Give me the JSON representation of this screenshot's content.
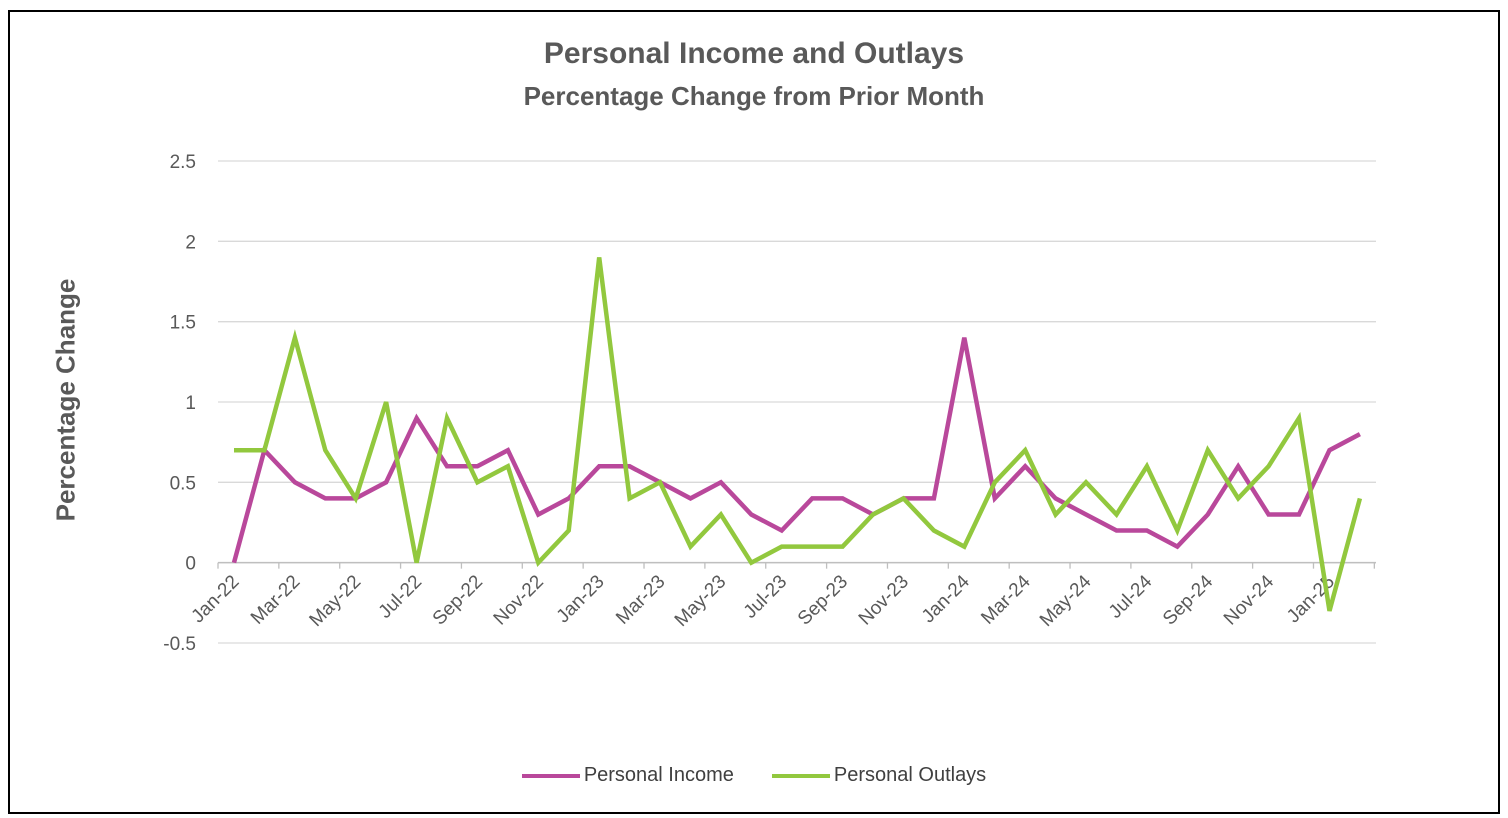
{
  "chart_data": {
    "type": "line",
    "title": "Personal Income and Outlays",
    "subtitle": "Percentage Change from Prior Month",
    "ylabel": "Percentage Change",
    "ylim": [
      -0.5,
      2.5
    ],
    "yticks": [
      "-0.5",
      "0",
      "0.5",
      "1",
      "1.5",
      "2",
      "2.5"
    ],
    "yticks_values": [
      -0.5,
      0,
      0.5,
      1,
      1.5,
      2,
      2.5
    ],
    "grid": true,
    "legend_position": "bottom",
    "categories": [
      "Jan-22",
      "Feb-22",
      "Mar-22",
      "Apr-22",
      "May-22",
      "Jun-22",
      "Jul-22",
      "Aug-22",
      "Sep-22",
      "Oct-22",
      "Nov-22",
      "Dec-22",
      "Jan-23",
      "Feb-23",
      "Mar-23",
      "Apr-23",
      "May-23",
      "Jun-23",
      "Jul-23",
      "Aug-23",
      "Sep-23",
      "Oct-23",
      "Nov-23",
      "Dec-23",
      "Jan-24",
      "Feb-24",
      "Mar-24",
      "Apr-24",
      "May-24",
      "Jun-24",
      "Jul-24",
      "Aug-24",
      "Sep-24",
      "Oct-24",
      "Nov-24",
      "Dec-24",
      "Jan-25",
      "Feb-25"
    ],
    "xtick_labels": [
      "Jan-22",
      "Mar-22",
      "May-22",
      "Jul-22",
      "Sep-22",
      "Nov-22",
      "Jan-23",
      "Mar-23",
      "May-23",
      "Jul-23",
      "Sep-23",
      "Nov-23",
      "Jan-24",
      "Mar-24",
      "May-24",
      "Jul-24",
      "Sep-24",
      "Nov-24",
      "Jan-25"
    ],
    "series": [
      {
        "name": "Personal Income",
        "color": "#b9489b",
        "values": [
          0,
          0.7,
          0.5,
          0.4,
          0.4,
          0.5,
          0.9,
          0.6,
          0.6,
          0.7,
          0.3,
          0.4,
          0.6,
          0.6,
          0.5,
          0.4,
          0.5,
          0.3,
          0.2,
          0.4,
          0.4,
          0.3,
          0.4,
          0.4,
          1.4,
          0.4,
          0.6,
          0.4,
          0.3,
          0.2,
          0.2,
          0.1,
          0.3,
          0.6,
          0.3,
          0.3,
          0.7,
          0.8
        ]
      },
      {
        "name": "Personal Outlays",
        "color": "#92c83e",
        "values": [
          0.7,
          0.7,
          1.4,
          0.7,
          0.4,
          1.0,
          0.0,
          0.9,
          0.5,
          0.6,
          0.0,
          0.2,
          1.9,
          0.4,
          0.5,
          0.1,
          0.3,
          0.0,
          0.1,
          0.1,
          0.1,
          0.3,
          0.4,
          0.2,
          0.1,
          0.5,
          0.7,
          0.3,
          0.5,
          0.3,
          0.6,
          0.2,
          0.7,
          0.4,
          0.6,
          0.9,
          -0.3,
          0.4
        ]
      }
    ]
  }
}
